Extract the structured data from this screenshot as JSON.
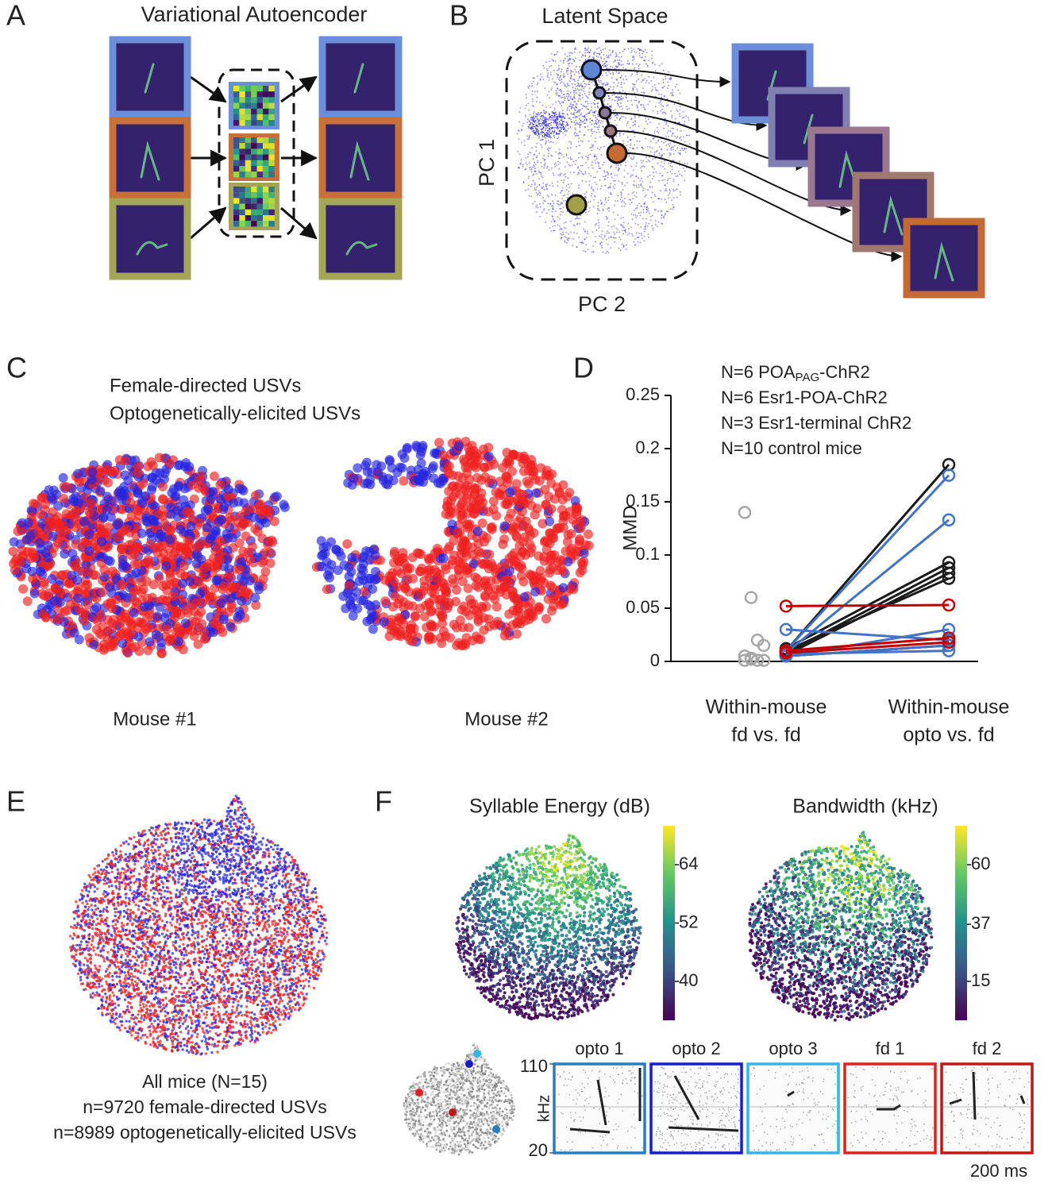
{
  "panels": {
    "a": {
      "label": "A",
      "title": "Variational Autoencoder"
    },
    "b": {
      "label": "B",
      "title": "Latent Space",
      "y_label": "PC 1",
      "x_label": "PC 2"
    },
    "c": {
      "label": "C",
      "legend": [
        "Female-directed USVs",
        "Optogenetically-elicited USVs"
      ],
      "colors": [
        "#f02020",
        "#2424e0"
      ],
      "mice": [
        "Mouse #1",
        "Mouse #2"
      ]
    },
    "d": {
      "label": "D"
    },
    "e": {
      "label": "E",
      "caption": [
        "All mice (N=15)",
        "n=9720 female-directed USVs",
        "n=8989 optogenetically-elicited USVs"
      ],
      "colors": [
        "#222222",
        "#f02020",
        "#2424e0"
      ]
    },
    "f": {
      "label": "F",
      "maps": [
        {
          "title": "Syllable Energy (dB)",
          "lim": [
            32,
            72
          ],
          "ticks": [
            40,
            52,
            64
          ]
        },
        {
          "title": "Bandwidth (kHz)",
          "lim": [
            0,
            75
          ],
          "ticks": [
            15,
            37,
            60
          ]
        }
      ],
      "spectrograms": {
        "titles": [
          "opto 1",
          "opto 2",
          "opto 3",
          "fd 1",
          "fd 2"
        ],
        "colors": [
          "#2a7bbf",
          "#1a1acf",
          "#33b5e8",
          "#e02020",
          "#c01818"
        ],
        "y_label": "kHz",
        "ylim": [
          20,
          110
        ],
        "yticks": [
          20,
          110
        ],
        "scale_bar": "200 ms"
      }
    }
  },
  "chart_data": {
    "type": "line",
    "y_label": "MMD",
    "categories": [
      [
        "Within-mouse",
        "fd vs. fd"
      ],
      [
        "Within-mouse",
        "opto vs. fd"
      ]
    ],
    "ylim": [
      0,
      0.25
    ],
    "yticks": [
      0,
      0.05,
      0.1,
      0.15,
      0.2,
      0.25
    ],
    "series": [
      {
        "name": [
          "N=6 POA",
          "PAG",
          "-ChR2"
        ],
        "subscript": 1,
        "color": "#4472c4",
        "values": [
          [
            0.01,
            0.175
          ],
          [
            0.008,
            0.133
          ],
          [
            0.03,
            0.02
          ],
          [
            0.005,
            0.03
          ],
          [
            0.005,
            0.015
          ],
          [
            0.007,
            0.01
          ]
        ]
      },
      {
        "name": [
          "N=6 Esr1-POA-ChR2"
        ],
        "color": "#1a1a1a",
        "values": [
          [
            0.01,
            0.185
          ],
          [
            0.012,
            0.093
          ],
          [
            0.008,
            0.088
          ],
          [
            0.006,
            0.083
          ],
          [
            0.01,
            0.078
          ],
          [
            0.005,
            0.015
          ]
        ]
      },
      {
        "name": [
          "N=3 Esr1-terminal ChR2"
        ],
        "color": "#c00000",
        "values": [
          [
            0.052,
            0.053
          ],
          [
            0.01,
            0.022
          ],
          [
            0.008,
            0.018
          ]
        ]
      },
      {
        "name": [
          "N=10 control mice"
        ],
        "color": "#a6a6a6",
        "values": [
          [
            0.14,
            null
          ],
          [
            0.06,
            null
          ],
          [
            0.02,
            null
          ],
          [
            0.015,
            null
          ],
          [
            0.005,
            null
          ],
          [
            0.002,
            null
          ],
          [
            0.001,
            null
          ],
          [
            0.001,
            null
          ],
          [
            0.001,
            null
          ],
          [
            0.003,
            null
          ]
        ]
      }
    ]
  }
}
